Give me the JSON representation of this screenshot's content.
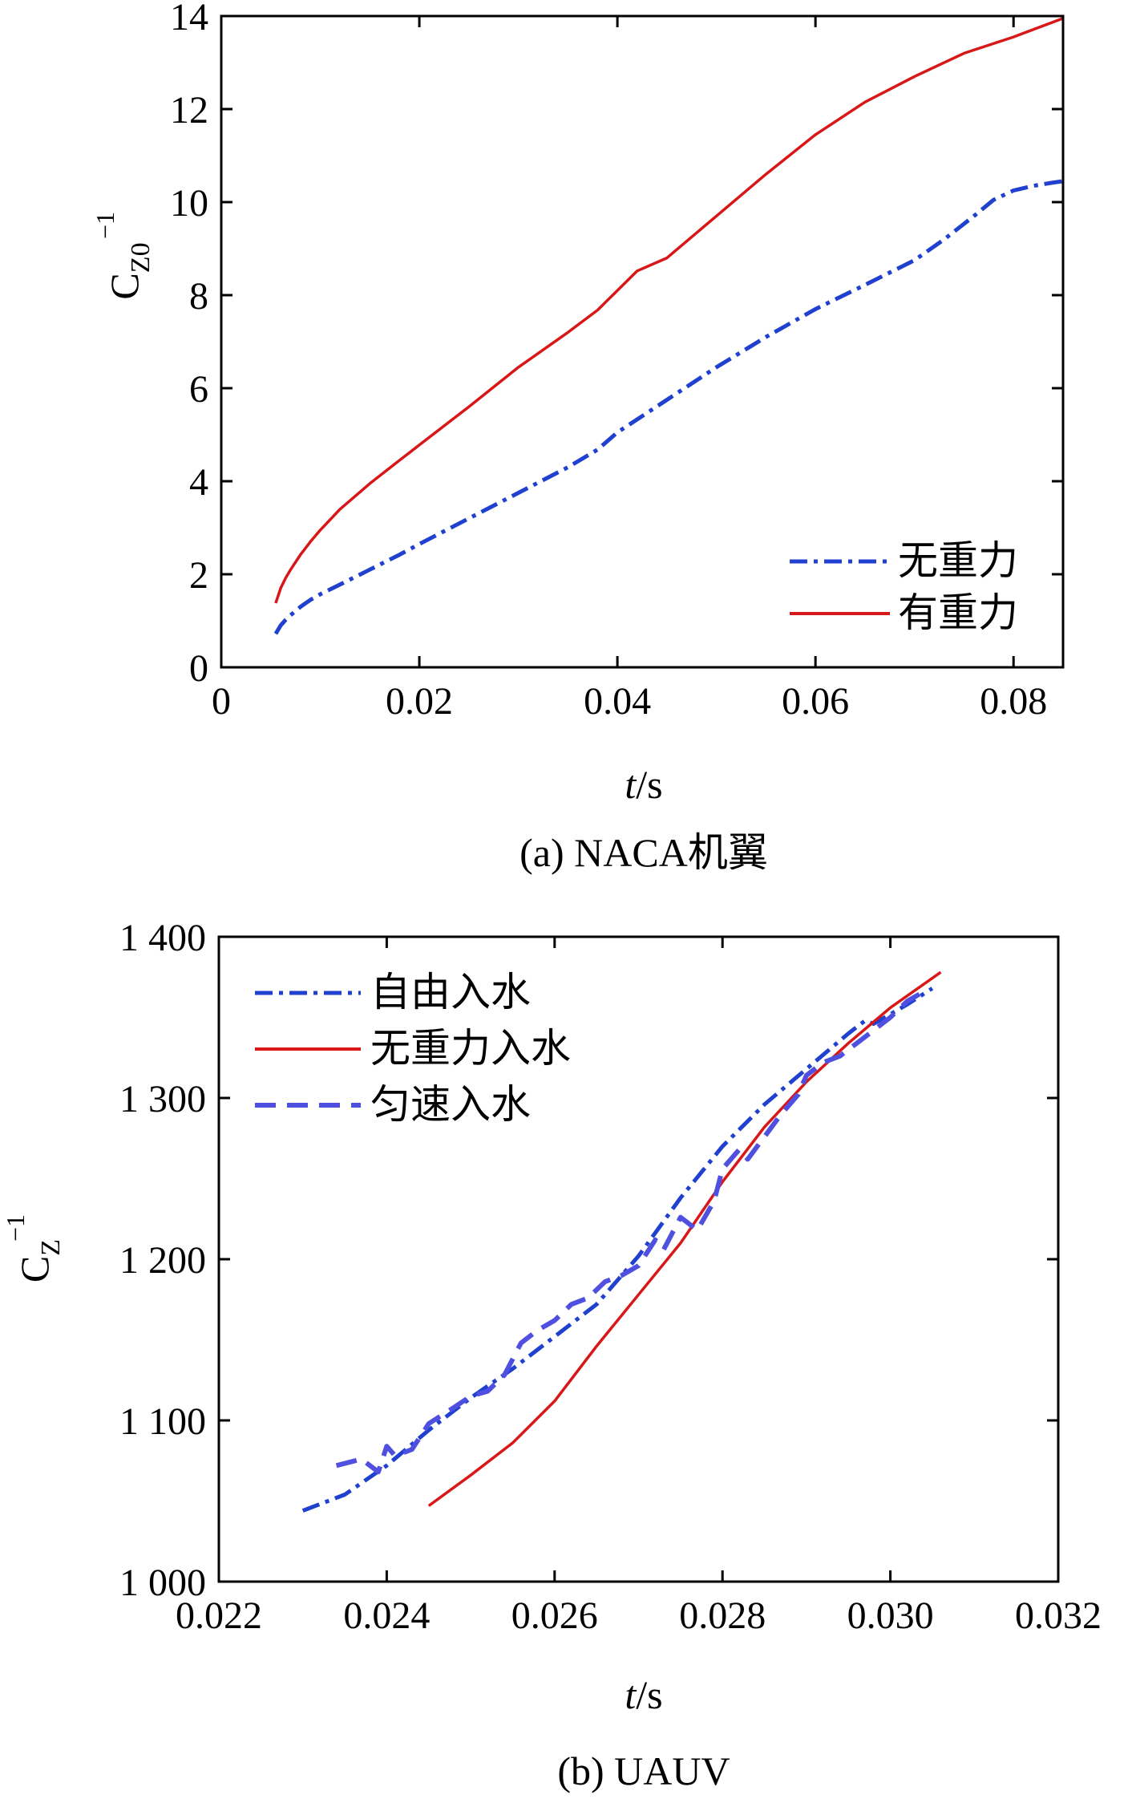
{
  "chart_data": [
    {
      "type": "line",
      "panel_label": "(a) NACA机翼",
      "xlabel": "t/s",
      "xlabel_italic": "t",
      "xlabel_rest": "/s",
      "ylabel_base": "C",
      "ylabel_sub": "Z0",
      "ylabel_sup": "−1",
      "xlim": [
        0,
        0.085
      ],
      "ylim": [
        0,
        14
      ],
      "xticks": [
        0,
        0.02,
        0.04,
        0.06,
        0.08
      ],
      "xtick_labels": [
        "0",
        "0.02",
        "0.04",
        "0.06",
        "0.08"
      ],
      "yticks": [
        0,
        2,
        4,
        6,
        8,
        10,
        12,
        14
      ],
      "ytick_labels": [
        "0",
        "2",
        "4",
        "6",
        "8",
        "10",
        "12",
        "14"
      ],
      "legend_position": "bottom-right",
      "series": [
        {
          "name": "无重力",
          "color": "#2040d0",
          "style": "dashdot",
          "x": [
            0.0055,
            0.006,
            0.0065,
            0.007,
            0.008,
            0.009,
            0.01,
            0.012,
            0.015,
            0.018,
            0.02,
            0.025,
            0.03,
            0.035,
            0.038,
            0.04,
            0.045,
            0.05,
            0.055,
            0.06,
            0.065,
            0.07,
            0.073,
            0.076,
            0.078,
            0.08,
            0.082,
            0.084,
            0.085
          ],
          "values": [
            0.72,
            0.9,
            1.02,
            1.12,
            1.3,
            1.45,
            1.57,
            1.78,
            2.1,
            2.42,
            2.65,
            3.2,
            3.75,
            4.3,
            4.68,
            5.05,
            5.75,
            6.45,
            7.1,
            7.7,
            8.22,
            8.75,
            9.2,
            9.7,
            10.05,
            10.25,
            10.35,
            10.42,
            10.45
          ]
        },
        {
          "name": "有重力",
          "color": "#d81818",
          "style": "solid",
          "x": [
            0.0055,
            0.006,
            0.0065,
            0.007,
            0.008,
            0.009,
            0.01,
            0.012,
            0.015,
            0.018,
            0.02,
            0.025,
            0.03,
            0.035,
            0.038,
            0.04,
            0.042,
            0.045,
            0.05,
            0.055,
            0.06,
            0.065,
            0.07,
            0.075,
            0.08,
            0.085
          ],
          "values": [
            1.38,
            1.7,
            1.92,
            2.1,
            2.42,
            2.7,
            2.95,
            3.4,
            3.95,
            4.45,
            4.78,
            5.6,
            6.45,
            7.2,
            7.68,
            8.1,
            8.52,
            8.8,
            9.7,
            10.6,
            11.45,
            12.15,
            12.7,
            13.2,
            13.55,
            13.95
          ]
        }
      ]
    },
    {
      "type": "line",
      "panel_label": "(b) UAUV",
      "xlabel": "t/s",
      "xlabel_italic": "t",
      "xlabel_rest": "/s",
      "ylabel_base": "C",
      "ylabel_sub": "Z",
      "ylabel_sup": "−1",
      "xlim": [
        0.022,
        0.032
      ],
      "ylim": [
        1000,
        1400
      ],
      "xticks": [
        0.022,
        0.024,
        0.026,
        0.028,
        0.03,
        0.032
      ],
      "xtick_labels": [
        "0.022",
        "0.024",
        "0.026",
        "0.028",
        "0.030",
        "0.032"
      ],
      "yticks": [
        1000,
        1100,
        1200,
        1300,
        1400
      ],
      "ytick_labels": [
        "1 000",
        "1 100",
        "1 200",
        "1 300",
        "1 400"
      ],
      "legend_position": "top-left",
      "series": [
        {
          "name": "自由入水",
          "color": "#2040d0",
          "style": "dashdot",
          "x": [
            0.023,
            0.0235,
            0.024,
            0.0245,
            0.025,
            0.0255,
            0.026,
            0.0265,
            0.027,
            0.0275,
            0.028,
            0.0285,
            0.029,
            0.0295,
            0.0297,
            0.0298,
            0.03,
            0.0302,
            0.0305
          ],
          "values": [
            1044,
            1054,
            1072,
            1094,
            1114,
            1132,
            1152,
            1172,
            1202,
            1238,
            1270,
            1296,
            1318,
            1340,
            1348,
            1346,
            1352,
            1358,
            1368
          ]
        },
        {
          "name": "无重力入水",
          "color": "#d81818",
          "style": "solid",
          "x": [
            0.0245,
            0.025,
            0.0255,
            0.026,
            0.0265,
            0.027,
            0.0275,
            0.028,
            0.0285,
            0.029,
            0.0295,
            0.03,
            0.0306
          ],
          "values": [
            1047,
            1066,
            1086,
            1112,
            1146,
            1178,
            1210,
            1248,
            1282,
            1310,
            1334,
            1356,
            1378
          ]
        },
        {
          "name": "匀速入水",
          "color": "#5050e0",
          "style": "dashed",
          "x": [
            0.0234,
            0.0237,
            0.0239,
            0.024,
            0.0241,
            0.0243,
            0.0245,
            0.0248,
            0.025,
            0.0252,
            0.0254,
            0.0256,
            0.0258,
            0.026,
            0.0262,
            0.0264,
            0.0266,
            0.0268,
            0.027,
            0.0272,
            0.0273,
            0.0275,
            0.0277,
            0.0279,
            0.028,
            0.0282,
            0.0283,
            0.0285,
            0.0287,
            0.0289,
            0.029,
            0.0292,
            0.0294,
            0.0296,
            0.0298,
            0.03,
            0.0302,
            0.0304
          ],
          "values": [
            1072,
            1076,
            1068,
            1084,
            1078,
            1082,
            1098,
            1108,
            1115,
            1118,
            1128,
            1148,
            1156,
            1162,
            1172,
            1176,
            1186,
            1190,
            1196,
            1212,
            1206,
            1226,
            1218,
            1236,
            1256,
            1268,
            1262,
            1276,
            1290,
            1302,
            1314,
            1322,
            1326,
            1334,
            1342,
            1350,
            1360,
            1366
          ]
        }
      ]
    }
  ]
}
